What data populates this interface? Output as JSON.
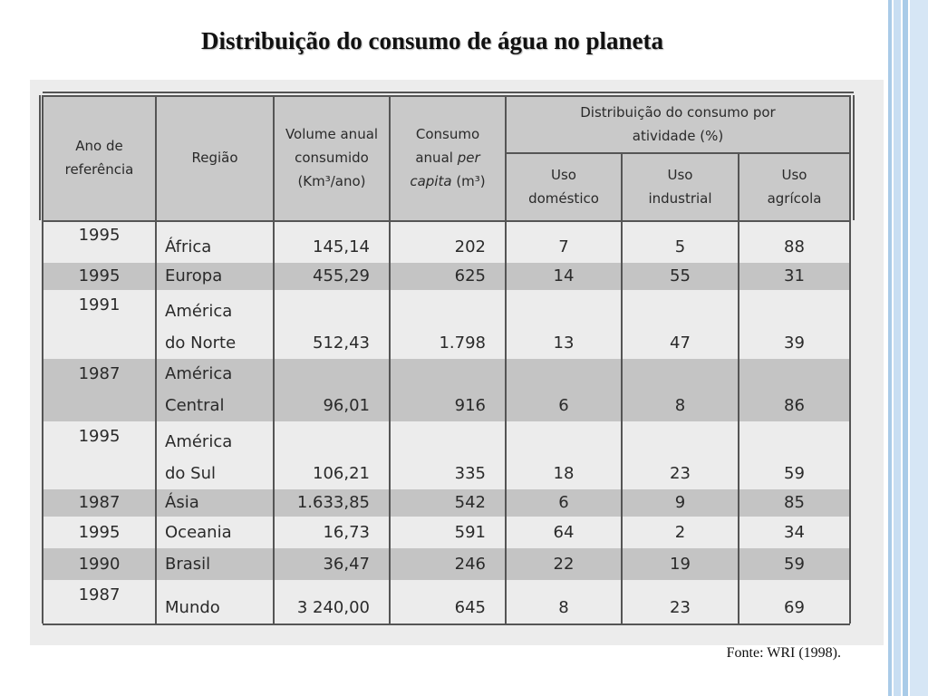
{
  "title": "Distribuição do consumo de água no planeta",
  "table": {
    "headers": {
      "year": "Ano de referência",
      "region": "Região",
      "volume": "Volume anual consumido (Km³/ano)",
      "per_capita": {
        "start": "Consumo anual",
        "italic": "per capita",
        "unit": "(m³)"
      },
      "distribution": "Distribuição do consumo por atividade (%)",
      "domestic": "Uso doméstico",
      "industrial": "Uso industrial",
      "agricultural": "Uso agrícola"
    },
    "rows": [
      [
        "1995",
        "África",
        "145,14",
        "202",
        "7",
        "5",
        "88"
      ],
      [
        "1995",
        "Europa",
        "455,29",
        "625",
        "14",
        "55",
        "31"
      ],
      [
        "1991",
        "América do Norte",
        "512,43",
        "1.798",
        "13",
        "47",
        "39"
      ],
      [
        "1987",
        "América Central",
        "96,01",
        "916",
        "6",
        "8",
        "86"
      ],
      [
        "1995",
        "América do Sul",
        "106,21",
        "335",
        "18",
        "23",
        "59"
      ],
      [
        "1987",
        "Ásia",
        "1.633,85",
        "542",
        "6",
        "9",
        "85"
      ],
      [
        "1995",
        "Oceania",
        "16,73",
        "591",
        "64",
        "2",
        "34"
      ],
      [
        "1990",
        "Brasil",
        "36,47",
        "246",
        "22",
        "19",
        "59"
      ],
      [
        "1987",
        "Mundo",
        "3 240,00",
        "645",
        "8",
        "23",
        "69"
      ]
    ]
  },
  "source": "Fonte: WRI (1998)."
}
